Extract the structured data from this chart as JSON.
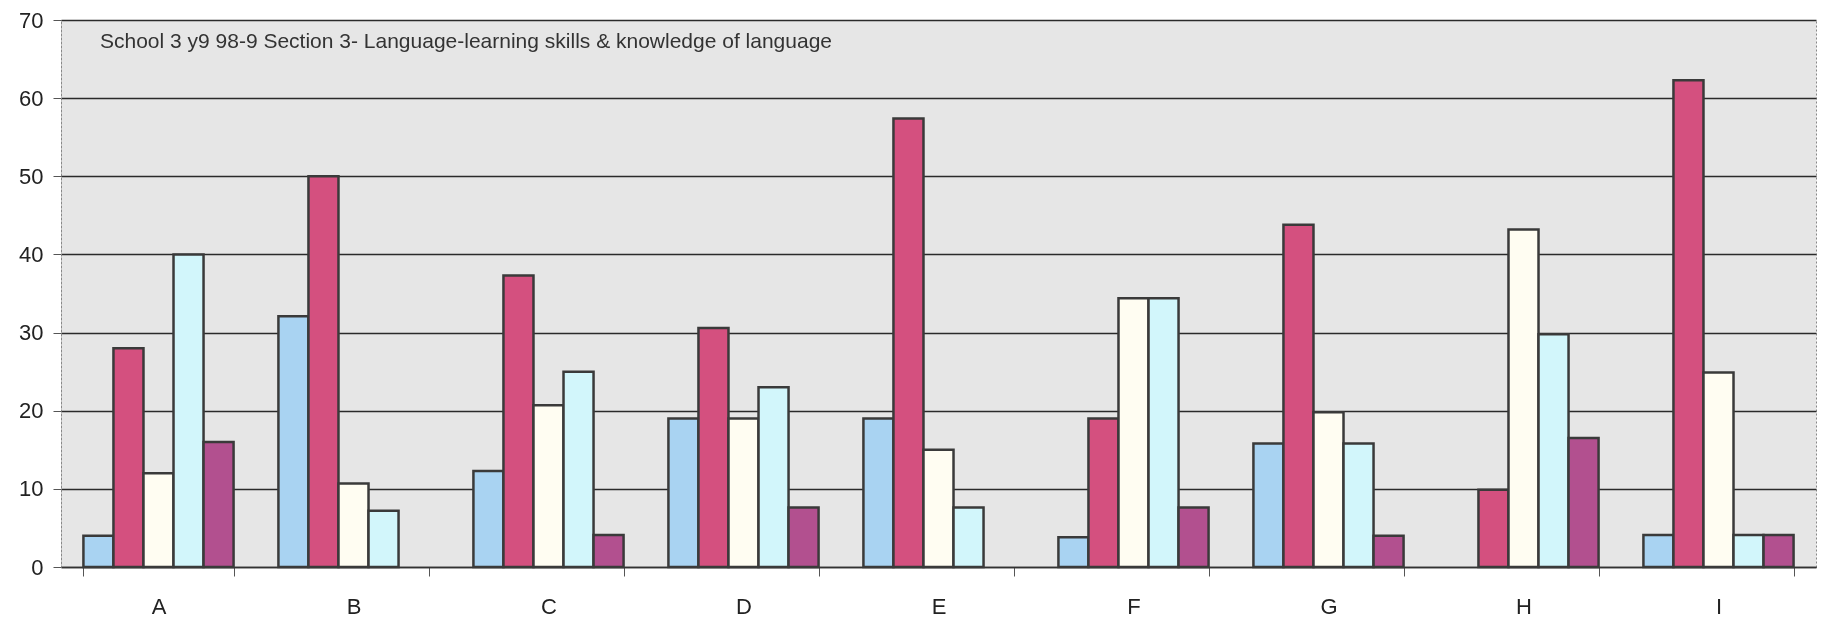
{
  "chart_data": {
    "type": "bar",
    "title": "School 3  y9 98-9 Section 3- Language-learning skills & knowledge of language",
    "categories": [
      "A",
      "B",
      "C",
      "D",
      "E",
      "F",
      "G",
      "H",
      "I"
    ],
    "series": [
      {
        "color": "#a9d3f2",
        "values": [
          4,
          32.1,
          12.3,
          19,
          19,
          3.8,
          15.8,
          null,
          4.1
        ]
      },
      {
        "color": "#d4507f",
        "values": [
          28,
          50,
          37.3,
          30.6,
          57.4,
          19,
          43.8,
          9.9,
          62.3
        ]
      },
      {
        "color": "#fffdf2",
        "values": [
          12,
          10.7,
          20.7,
          19,
          15,
          34.4,
          19.8,
          43.2,
          24.9
        ]
      },
      {
        "color": "#d2f6fb",
        "values": [
          40,
          7.2,
          25,
          23,
          7.6,
          34.4,
          15.8,
          29.8,
          4.1
        ]
      },
      {
        "color": "#b2508f",
        "values": [
          16,
          null,
          4.1,
          7.6,
          null,
          7.6,
          4,
          16.5,
          4.1
        ]
      }
    ],
    "ylim": [
      0,
      70
    ],
    "yticks": [
      0,
      10,
      20,
      30,
      40,
      50,
      60,
      70
    ],
    "grid": "y"
  }
}
